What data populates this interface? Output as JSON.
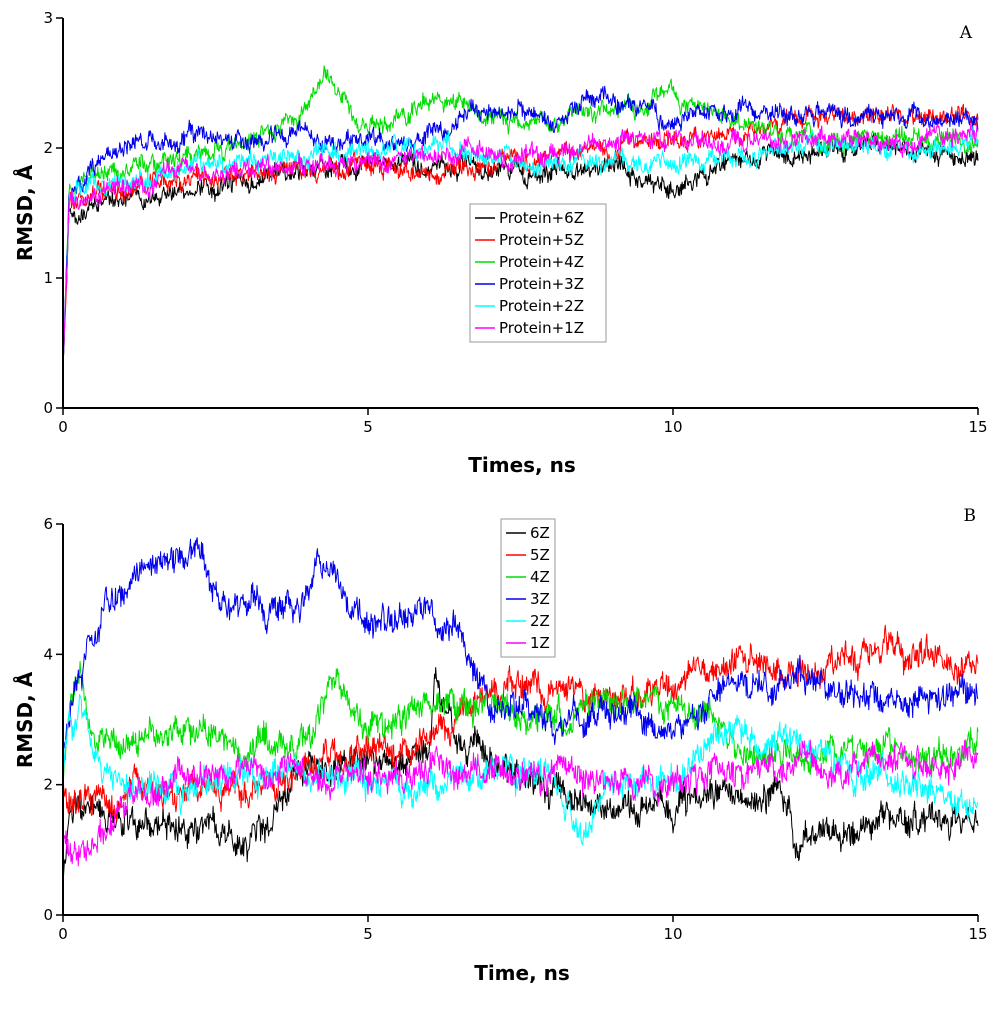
{
  "chart_data": [
    {
      "type": "line",
      "panel_label": "A",
      "xlabel": "Times, ns",
      "ylabel": "RMSD, Å",
      "xlim": [
        0,
        15
      ],
      "ylim": [
        0,
        3
      ],
      "xticks": [
        0,
        5,
        10,
        15
      ],
      "yticks": [
        0,
        1,
        2,
        3
      ],
      "grid": false,
      "legend_position": "center",
      "series": [
        {
          "name": "Protein+6Z",
          "color": "#000000",
          "x": [
            0,
            0.1,
            0.5,
            1,
            2,
            3,
            4,
            5,
            6,
            7,
            8,
            9,
            10,
            11,
            12,
            13,
            14,
            15
          ],
          "y": [
            0.3,
            1.45,
            1.55,
            1.6,
            1.7,
            1.72,
            1.8,
            1.9,
            1.88,
            1.85,
            1.82,
            1.85,
            1.7,
            1.88,
            1.95,
            1.98,
            1.95,
            1.95
          ]
        },
        {
          "name": "Protein+5Z",
          "color": "#ff0000",
          "x": [
            0,
            0.1,
            0.5,
            1,
            2,
            3,
            4,
            5,
            6,
            7,
            8,
            9,
            10,
            11,
            12,
            13,
            14,
            15
          ],
          "y": [
            0.3,
            1.55,
            1.65,
            1.7,
            1.75,
            1.78,
            1.82,
            1.85,
            1.85,
            1.85,
            1.95,
            2.0,
            2.05,
            2.1,
            2.2,
            2.3,
            2.2,
            2.25
          ]
        },
        {
          "name": "Protein+4Z",
          "color": "#00dd00",
          "x": [
            0,
            0.1,
            0.5,
            1,
            2,
            3,
            4,
            4.3,
            5,
            6,
            7,
            8,
            9,
            10,
            11,
            12,
            13,
            14,
            15
          ],
          "y": [
            0.3,
            1.7,
            1.8,
            1.85,
            1.9,
            2.05,
            2.3,
            2.55,
            2.1,
            2.35,
            2.25,
            2.2,
            2.3,
            2.4,
            2.2,
            2.1,
            2.05,
            2.1,
            2.05
          ]
        },
        {
          "name": "Protein+3Z",
          "color": "#0000ee",
          "x": [
            0,
            0.1,
            0.5,
            1,
            2,
            3,
            4,
            5,
            6,
            7,
            8,
            9,
            10,
            11,
            12,
            13,
            14,
            15
          ],
          "y": [
            0.3,
            1.65,
            1.85,
            2.0,
            2.1,
            2.05,
            2.1,
            2.05,
            2.1,
            2.3,
            2.2,
            2.4,
            2.2,
            2.3,
            2.25,
            2.25,
            2.2,
            2.2
          ]
        },
        {
          "name": "Protein+2Z",
          "color": "#00ffff",
          "x": [
            0,
            0.1,
            0.5,
            1,
            2,
            3,
            4,
            5,
            6,
            7,
            8,
            9,
            10,
            11,
            12,
            13,
            14,
            15
          ],
          "y": [
            0.3,
            1.6,
            1.7,
            1.75,
            1.85,
            1.9,
            1.95,
            2.0,
            2.0,
            1.95,
            1.9,
            1.88,
            1.85,
            1.95,
            2.0,
            2.0,
            1.95,
            2.05
          ]
        },
        {
          "name": "Protein+1Z",
          "color": "#ff00ff",
          "x": [
            0,
            0.1,
            0.5,
            1,
            2,
            3,
            4,
            5,
            6,
            7,
            8,
            9,
            10,
            11,
            12,
            13,
            14,
            15
          ],
          "y": [
            0.3,
            1.6,
            1.65,
            1.7,
            1.8,
            1.82,
            1.85,
            1.9,
            1.95,
            1.95,
            1.95,
            2.05,
            2.1,
            2.0,
            2.05,
            2.05,
            2.05,
            2.1
          ]
        }
      ]
    },
    {
      "type": "line",
      "panel_label": "B",
      "xlabel": "Time, ns",
      "ylabel": "RMSD, Å",
      "xlim": [
        0,
        15
      ],
      "ylim": [
        0,
        6
      ],
      "xticks": [
        0,
        5,
        10,
        15
      ],
      "yticks": [
        0,
        2,
        4,
        6
      ],
      "grid": false,
      "legend_position": "top-center",
      "series": [
        {
          "name": "6Z",
          "color": "#000000",
          "x": [
            0,
            0.1,
            0.5,
            1,
            2,
            3,
            3.2,
            4,
            5,
            6,
            6.1,
            6.5,
            7,
            8,
            9,
            10,
            11,
            11.9,
            12,
            13,
            14,
            15
          ],
          "y": [
            0.5,
            1.7,
            1.6,
            1.5,
            1.3,
            1.1,
            1.2,
            2.4,
            2.4,
            2.5,
            3.8,
            2.6,
            2.5,
            1.8,
            1.6,
            1.7,
            1.9,
            1.8,
            1.2,
            1.3,
            1.4,
            1.5
          ]
        },
        {
          "name": "5Z",
          "color": "#ff0000",
          "x": [
            0,
            0.1,
            0.5,
            1,
            2,
            3,
            4,
            5,
            6,
            7,
            8,
            9,
            10,
            11,
            12,
            13,
            14,
            15
          ],
          "y": [
            2.0,
            1.8,
            1.8,
            1.9,
            2.0,
            1.8,
            2.3,
            2.5,
            2.6,
            3.5,
            3.5,
            3.4,
            3.5,
            3.9,
            3.7,
            3.9,
            4.0,
            3.9
          ]
        },
        {
          "name": "4Z",
          "color": "#00dd00",
          "x": [
            0,
            0.1,
            0.3,
            0.5,
            1,
            2,
            3,
            4,
            4.5,
            5,
            6,
            7,
            8,
            9,
            10,
            11,
            12,
            13,
            14,
            15
          ],
          "y": [
            2.0,
            3.2,
            3.6,
            2.8,
            2.6,
            2.8,
            2.6,
            2.8,
            3.4,
            2.8,
            3.2,
            3.2,
            3.0,
            3.2,
            3.3,
            2.6,
            2.4,
            2.5,
            2.5,
            2.5
          ]
        },
        {
          "name": "3Z",
          "color": "#0000ee",
          "x": [
            0,
            0.2,
            0.5,
            0.7,
            1,
            1.5,
            2,
            2.2,
            2.5,
            3,
            4,
            4.2,
            5,
            6,
            6.5,
            7,
            8,
            9,
            10,
            11,
            12,
            13,
            14,
            15
          ],
          "y": [
            2.5,
            3.5,
            4.0,
            4.8,
            5.1,
            5.4,
            5.4,
            5.8,
            4.8,
            4.7,
            4.8,
            5.3,
            4.6,
            4.5,
            4.3,
            3.3,
            3.0,
            3.2,
            2.8,
            3.5,
            3.6,
            3.3,
            3.3,
            3.4
          ]
        },
        {
          "name": "2Z",
          "color": "#00ffff",
          "x": [
            0,
            0.1,
            0.3,
            0.5,
            1,
            2,
            3,
            4,
            5,
            6,
            7,
            8,
            8.5,
            9,
            10,
            11,
            12,
            13,
            14,
            15
          ],
          "y": [
            2.5,
            3.0,
            3.2,
            2.5,
            2.0,
            2.0,
            2.1,
            2.2,
            2.0,
            2.0,
            2.3,
            2.0,
            1.2,
            2.0,
            2.2,
            2.8,
            2.6,
            2.1,
            2.0,
            1.6
          ]
        },
        {
          "name": "1Z",
          "color": "#ff00ff",
          "x": [
            0,
            0.1,
            0.5,
            1,
            2,
            3,
            4,
            5,
            6,
            7,
            8,
            9,
            10,
            11,
            12,
            13,
            14,
            15
          ],
          "y": [
            1.2,
            0.9,
            1.0,
            1.7,
            2.1,
            2.2,
            2.2,
            2.1,
            2.2,
            2.2,
            2.2,
            2.1,
            2.2,
            2.2,
            2.2,
            2.3,
            2.3,
            2.3
          ]
        }
      ]
    }
  ]
}
